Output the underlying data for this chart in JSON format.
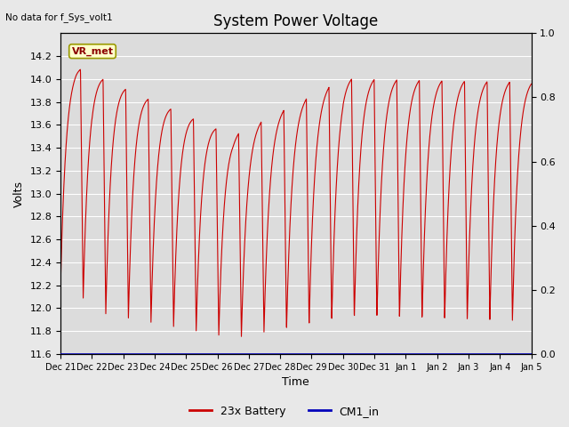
{
  "title": "System Power Voltage",
  "top_left_text": "No data for f_Sys_volt1",
  "xlabel": "Time",
  "ylabel": "Volts",
  "ylim_left": [
    11.6,
    14.4
  ],
  "ylim_right": [
    0.0,
    1.0
  ],
  "yticks_left": [
    11.6,
    11.8,
    12.0,
    12.2,
    12.4,
    12.6,
    12.8,
    13.0,
    13.2,
    13.4,
    13.6,
    13.8,
    14.0,
    14.2
  ],
  "yticks_right": [
    0.0,
    0.2,
    0.4,
    0.6,
    0.8,
    1.0
  ],
  "fig_bg_color": "#e8e8e8",
  "plot_bg_color": "#dcdcdc",
  "grid_color": "#ffffff",
  "line_color_battery": "#cc0000",
  "line_color_cm1": "#0000bb",
  "legend_labels": [
    "23x Battery",
    "CM1_in"
  ],
  "annotation_text": "VR_met",
  "title_fontsize": 12,
  "label_fontsize": 9,
  "tick_fontsize": 8,
  "xtick_labels": [
    "Dec 21",
    "Dec 22",
    "Dec 23",
    "Dec 24",
    "Dec 25",
    "Dec 26",
    "Dec 27",
    "Dec 28",
    "Dec 29",
    "Dec 30",
    "Dec 31",
    "Jan 1",
    "Jan 2",
    "Jan 3",
    "Jan 4",
    "Jan 5"
  ],
  "xtick_positions": [
    0,
    1,
    2,
    3,
    4,
    5,
    6,
    7,
    8,
    9,
    10,
    11,
    12,
    13,
    14,
    15
  ]
}
